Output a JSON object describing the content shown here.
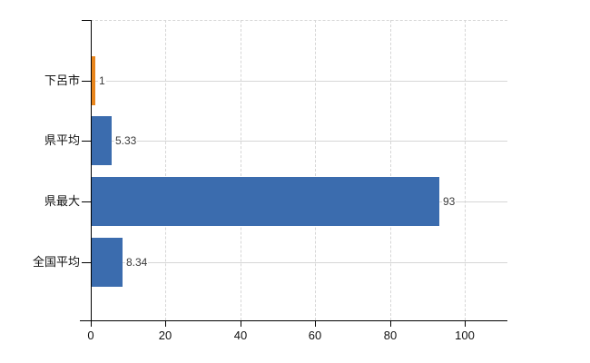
{
  "chart_data": {
    "type": "bar",
    "orientation": "horizontal",
    "categories": [
      "下呂市",
      "県平均",
      "県最大",
      "全国平均"
    ],
    "values": [
      1,
      5.33,
      93,
      8.34
    ],
    "value_labels": [
      "1",
      "5.33",
      "93",
      "8.34"
    ],
    "bar_colors": [
      "#e8851c",
      "#3b6cae",
      "#3b6cae",
      "#3b6cae"
    ],
    "x_tick_labels": [
      "0",
      "20",
      "40",
      "60",
      "80",
      "100"
    ],
    "x_tick_values": [
      0,
      20,
      40,
      60,
      80,
      100
    ],
    "xlim": [
      0,
      111.4
    ],
    "legend": null,
    "grid": {
      "vertical": "dashed",
      "horizontal_rows": "solid",
      "top_border": "dashed"
    }
  },
  "colors": {
    "bar_blue": "#3b6cae",
    "bar_orange": "#e8851c",
    "grid_line": "#d6d6d6",
    "axis_line": "#000000",
    "category_text": "#111111",
    "value_text": "#3a3a3a"
  }
}
